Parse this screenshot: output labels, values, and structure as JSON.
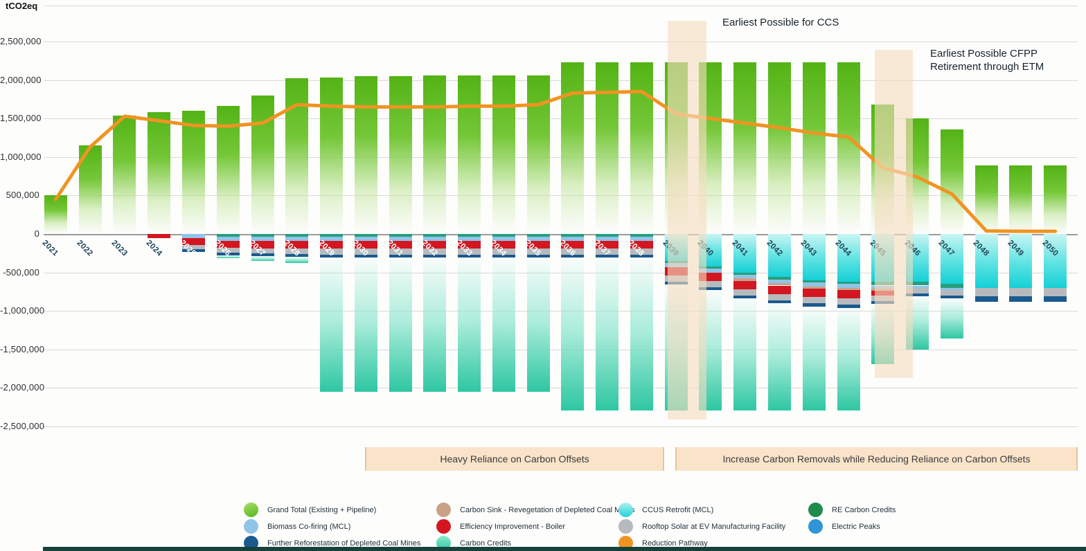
{
  "annotations": {
    "ccs": "Earliest Possible for CCS",
    "cfpp_line1": "Earliest Possible CFPP",
    "cfpp_line2": "Retirement through ETM"
  },
  "phase_bands": [
    {
      "label": "Heavy Reliance on Carbon Offsets"
    },
    {
      "label": "Increase Carbon Removals while Reducing Reliance on Carbon Offsets"
    }
  ],
  "colors": {
    "grand_total_top": "#53b315",
    "grand_total_mid": "#74c737",
    "carbon_credits": "#2ec7a2",
    "ccus": "#14d0d6",
    "re_carbon_credits": "#279e7d",
    "biomass": "#90c4e8",
    "carbon_sink": "#c9a186",
    "efficiency": "#d31620",
    "rooftop": "#b6babd",
    "reforestation": "#1a5a8f",
    "pathway": "#ef9422",
    "highlight_band": "#f5ddc0",
    "phase_band": "#f9e4ca",
    "grid": "#d8d8d8",
    "zero_line": "#9b9b9b",
    "year_label": "#22475a"
  },
  "legend": {
    "columns": [
      [
        {
          "label": "Grand Total (Existing + Pipeline)",
          "dot": "grad-green",
          "color": "#5bb71e"
        },
        {
          "label": "Biomass Co-firing (MCL)",
          "dot": "solid",
          "color": "#90c4e8"
        },
        {
          "label": "Further Reforestation of Depleted Coal Mines",
          "dot": "solid",
          "color": "#1a5a8f"
        }
      ],
      [
        {
          "label": "Carbon Sink - Revegetation of Depleted Coal Mines",
          "dot": "solid",
          "color": "#c9a186"
        },
        {
          "label": "Efficiency Improvement - Boiler",
          "dot": "solid",
          "color": "#d31620"
        },
        {
          "label": "Carbon Credits",
          "dot": "grad-teal",
          "color": "#2ec7a2"
        }
      ],
      [
        {
          "label": "CCUS Retrofit (MCL)",
          "dot": "grad-cyan",
          "color": "#14d0d6"
        },
        {
          "label": "Rooftop Solar at EV Manufacturing Facility",
          "dot": "solid",
          "color": "#b6babd"
        },
        {
          "label": "Reduction Pathway",
          "dot": "solid",
          "color": "#ef9422"
        }
      ],
      [
        {
          "label": "RE Carbon Credits",
          "dot": "solid",
          "color": "#1f8b4d"
        },
        {
          "label": "Electric Peaks",
          "dot": "solid",
          "color": "#2f95d6"
        }
      ]
    ]
  },
  "chart_data": {
    "type": "stacked-bar+line",
    "ylabel": "tCO2eq",
    "ylim": [
      -2500000,
      2500000
    ],
    "ytick_step": 500000,
    "y_tick_labels": [
      "-2,500,000",
      "-2,000,000",
      "-1,500,000",
      "-1,000,000",
      "-500,000",
      "0",
      "500,000",
      "1,000,000",
      "1,500,000",
      "2,000,000",
      "2,500,000"
    ],
    "grid": true,
    "legend_position": "bottom",
    "categories": [
      2021,
      2022,
      2023,
      2024,
      2025,
      2026,
      2027,
      2028,
      2029,
      2030,
      2031,
      2032,
      2033,
      2034,
      2035,
      2036,
      2037,
      2038,
      2039,
      2040,
      2041,
      2042,
      2043,
      2044,
      2045,
      2046,
      2047,
      2048,
      2049,
      2050
    ],
    "white_label_years": [
      2025,
      2026,
      2027,
      2028,
      2029,
      2030,
      2031,
      2032,
      2033,
      2034,
      2035,
      2036,
      2037,
      2038
    ],
    "neg_stack_order": [
      "ccus",
      "re_carbon_credits",
      "biomass",
      "carbon_sink",
      "efficiency",
      "rooftop",
      "reforestation",
      "carbon_credits"
    ],
    "series": [
      {
        "key": "grand_total",
        "name": "Grand Total (Existing + Pipeline)",
        "type": "bar",
        "color": "#5bb71e",
        "values": [
          500000,
          1150000,
          1540000,
          1580000,
          1600000,
          1660000,
          1800000,
          2020000,
          2030000,
          2050000,
          2050000,
          2060000,
          2060000,
          2060000,
          2060000,
          2230000,
          2230000,
          2230000,
          2230000,
          2230000,
          2230000,
          2230000,
          2230000,
          2230000,
          1680000,
          1500000,
          1360000,
          890000,
          890000,
          890000
        ]
      },
      {
        "key": "ccus",
        "name": "CCUS Retrofit (MCL)",
        "type": "bar",
        "color": "#14d0d6",
        "values": [
          0,
          0,
          0,
          0,
          0,
          0,
          0,
          0,
          0,
          0,
          0,
          0,
          0,
          0,
          0,
          0,
          0,
          0,
          -350000,
          -420000,
          -500000,
          -560000,
          -600000,
          -620000,
          -620000,
          -620000,
          -650000,
          -700000,
          -700000,
          -700000
        ]
      },
      {
        "key": "re_carbon_credits",
        "name": "RE Carbon Credits",
        "type": "bar",
        "color": "#1f8b4d",
        "values": [
          0,
          0,
          0,
          0,
          0,
          -40000,
          -40000,
          -40000,
          -40000,
          -40000,
          -40000,
          -40000,
          -40000,
          -40000,
          -40000,
          -40000,
          -40000,
          -40000,
          -30000,
          -30000,
          -30000,
          -30000,
          -30000,
          -30000,
          -50000,
          -50000,
          -50000,
          0,
          0,
          0
        ]
      },
      {
        "key": "biomass",
        "name": "Biomass Co-firing (MCL)",
        "type": "bar",
        "color": "#90c4e8",
        "values": [
          0,
          0,
          0,
          0,
          -50000,
          -50000,
          -50000,
          -50000,
          -50000,
          -50000,
          -50000,
          -50000,
          -50000,
          -50000,
          -50000,
          -50000,
          -50000,
          -50000,
          -50000,
          -50000,
          -50000,
          -50000,
          -50000,
          -50000,
          -40000,
          -30000,
          -30000,
          0,
          0,
          0
        ]
      },
      {
        "key": "carbon_sink",
        "name": "Carbon Sink - Revegetation of Depleted Coal Mines",
        "type": "bar",
        "color": "#c9a186",
        "values": [
          0,
          0,
          0,
          0,
          0,
          0,
          0,
          0,
          0,
          0,
          0,
          0,
          0,
          0,
          0,
          0,
          0,
          0,
          0,
          0,
          -30000,
          -30000,
          -30000,
          -30000,
          -30000,
          0,
          0,
          0,
          0,
          0
        ]
      },
      {
        "key": "efficiency",
        "name": "Efficiency Improvement - Boiler",
        "type": "bar",
        "color": "#d31620",
        "values": [
          0,
          0,
          0,
          -50000,
          -90000,
          -90000,
          -95000,
          -100000,
          -100000,
          -100000,
          -100000,
          -100000,
          -100000,
          -100000,
          -100000,
          -100000,
          -100000,
          -100000,
          -110000,
          -110000,
          -110000,
          -110000,
          -110000,
          -110000,
          -60000,
          0,
          0,
          0,
          0,
          0
        ]
      },
      {
        "key": "rooftop",
        "name": "Rooftop Solar at EV Manufacturing Facility",
        "type": "bar",
        "color": "#b6babd",
        "values": [
          0,
          0,
          0,
          0,
          -60000,
          -60000,
          -70000,
          -75000,
          -80000,
          -80000,
          -80000,
          -80000,
          -80000,
          -80000,
          -80000,
          -80000,
          -80000,
          -80000,
          -80000,
          -80000,
          -80000,
          -80000,
          -80000,
          -80000,
          -70000,
          -70000,
          -70000,
          -110000,
          -110000,
          -110000
        ]
      },
      {
        "key": "reforestation",
        "name": "Further Reforestation of Depleted Coal Mines",
        "type": "bar",
        "color": "#1a5a8f",
        "values": [
          0,
          0,
          0,
          0,
          -30000,
          -35000,
          -35000,
          -35000,
          -35000,
          -35000,
          -35000,
          -35000,
          -35000,
          -35000,
          -35000,
          -35000,
          -35000,
          -35000,
          -40000,
          -40000,
          -40000,
          -40000,
          -40000,
          -40000,
          -40000,
          -40000,
          -40000,
          -70000,
          -70000,
          -70000
        ]
      },
      {
        "key": "carbon_credits",
        "name": "Carbon Credits",
        "type": "bar",
        "color": "#2ec7a2",
        "values": [
          0,
          0,
          0,
          0,
          0,
          -40000,
          -60000,
          -80000,
          -1745000,
          -1745000,
          -1745000,
          -1745000,
          -1745000,
          -1745000,
          -1745000,
          -1985000,
          -1985000,
          -1985000,
          -1630000,
          -1560000,
          -1450000,
          -1390000,
          -1350000,
          -1330000,
          -780000,
          -690000,
          -520000,
          0,
          0,
          0
        ]
      },
      {
        "key": "pathway",
        "name": "Reduction Pathway",
        "type": "line",
        "color": "#ef9422",
        "values": [
          450000,
          1130000,
          1530000,
          1470000,
          1410000,
          1400000,
          1440000,
          1680000,
          1660000,
          1650000,
          1650000,
          1650000,
          1660000,
          1660000,
          1680000,
          1830000,
          1840000,
          1850000,
          1560000,
          1500000,
          1440000,
          1380000,
          1310000,
          1260000,
          860000,
          740000,
          520000,
          40000,
          35000,
          35000
        ]
      }
    ]
  }
}
